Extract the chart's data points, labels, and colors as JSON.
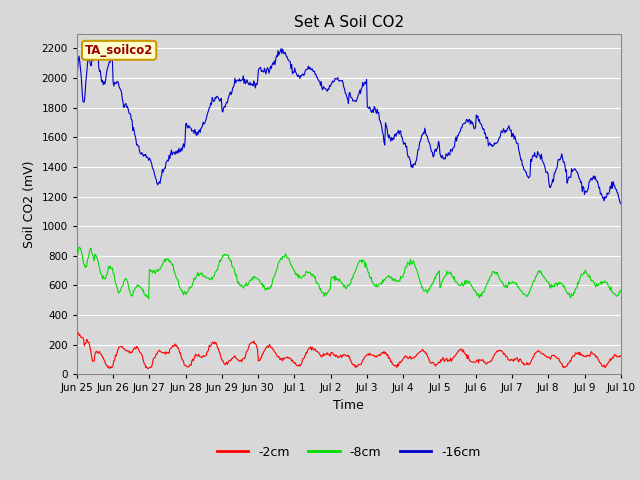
{
  "title": "Set A Soil CO2",
  "ylabel": "Soil CO2 (mV)",
  "xlabel": "Time",
  "fig_facecolor": "#d8d8d8",
  "plot_bg_color": "#d8d8d8",
  "label_box_text": "TA_soilco2",
  "label_box_facecolor": "#ffffcc",
  "label_box_edgecolor": "#cc9900",
  "label_text_color": "#990000",
  "line_colors": {
    "red": "#ff0000",
    "green": "#00dd00",
    "blue": "#0000cc"
  },
  "legend_labels": [
    "-2cm",
    "-8cm",
    "-16cm"
  ],
  "xtick_labels": [
    "Jun 25",
    "Jun 26",
    "Jun 27",
    "Jun 28",
    "Jun 29",
    "Jun 30",
    "Jul 1",
    "Jul 2",
    "Jul 3",
    "Jul 4",
    "Jul 5",
    "Jul 6",
    "Jul 7",
    "Jul 8",
    "Jul 9",
    "Jul 10"
  ],
  "ylim": [
    0,
    2300
  ],
  "yticks": [
    0,
    200,
    400,
    600,
    800,
    1000,
    1200,
    1400,
    1600,
    1800,
    2000,
    2200
  ]
}
